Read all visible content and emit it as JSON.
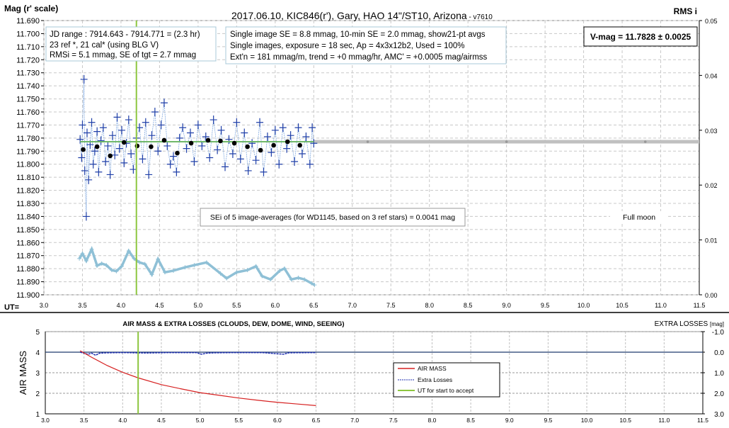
{
  "chart_data": [
    {
      "type": "scatter",
      "title": "2017.06.10,  KIC846(r'), Gary, HAO 14\"/ST10, Arizona",
      "title_suffix": " - v7610",
      "ylabel": "Mag (r' scale)",
      "y2label": "RMS i",
      "xlabel": "UT=",
      "xlim": [
        3.0,
        11.5
      ],
      "xticks": [
        "3.0",
        "3.5",
        "4.0",
        "4.5",
        "5.0",
        "5.5",
        "6.0",
        "6.5",
        "7.0",
        "7.5",
        "8.0",
        "8.5",
        "9.0",
        "9.5",
        "10.0",
        "10.5",
        "11.0",
        "11.5"
      ],
      "ylim": [
        11.69,
        11.9
      ],
      "y_inverted": true,
      "yticks": [
        "11.690",
        "11.700",
        "11.710",
        "11.720",
        "11.730",
        "11.740",
        "11.750",
        "11.760",
        "11.770",
        "11.780",
        "11.790",
        "11.800",
        "11.810",
        "11.820",
        "11.830",
        "11.840",
        "11.850",
        "11.860",
        "11.870",
        "11.880",
        "11.890",
        "11.900"
      ],
      "y2lim": [
        0,
        0.05
      ],
      "y2ticks": [
        "0.00",
        "0.01",
        "0.02",
        "0.03",
        "0.04",
        "0.05"
      ],
      "grid": true,
      "accept_ut": 4.2,
      "mean_mag": 11.7828,
      "colors": {
        "individual": "#1f3fa8",
        "averages": "#000000",
        "rms": "#8fc0d6",
        "mean": "#70b86a",
        "extension": "#c0c0c0",
        "accept": "#8dc63f"
      },
      "annotations": {
        "jd_box": [
          "JD range : 7914.643 - 7914.771 = (2.3 hr)",
          "23 ref *, 21 cal* (using BLG V)",
          "RMSi = 5.1 mmag, SE of tgt = 2.7 mmag"
        ],
        "info_box": [
          "Single image SE = 8.8 mmag, 10-min SE = 2.0 mmag, show21-pt avgs",
          "Single images, exposure = 18 sec, Ap = 4x3x12b2, Used = 100%",
          "Ext'n = 181 mmag/m, trend = +0 mmag/hr, AMC' = +0.0005 mag/airmss"
        ],
        "vmag_box": "V-mag = 11.7828 ± 0.0025",
        "sei_box": "SEi of 5 image-averages (for WD1145, based on 3 ref stars) = 0.0041 mag",
        "moon": "Full moon"
      },
      "series": [
        {
          "key": "individual",
          "marker": "cross",
          "points": [
            [
              3.47,
              11.781
            ],
            [
              3.49,
              11.795
            ],
            [
              3.5,
              11.77
            ],
            [
              3.52,
              11.735
            ],
            [
              3.53,
              11.805
            ],
            [
              3.55,
              11.84
            ],
            [
              3.56,
              11.776
            ],
            [
              3.58,
              11.812
            ],
            [
              3.6,
              11.785
            ],
            [
              3.62,
              11.768
            ],
            [
              3.64,
              11.8
            ],
            [
              3.66,
              11.79
            ],
            [
              3.69,
              11.775
            ],
            [
              3.71,
              11.806
            ],
            [
              3.74,
              11.782
            ],
            [
              3.77,
              11.772
            ],
            [
              3.8,
              11.798
            ],
            [
              3.83,
              11.786
            ],
            [
              3.86,
              11.808
            ],
            [
              3.89,
              11.778
            ],
            [
              3.92,
              11.793
            ],
            [
              3.95,
              11.764
            ],
            [
              3.98,
              11.788
            ],
            [
              4.01,
              11.774
            ],
            [
              4.04,
              11.799
            ],
            [
              4.07,
              11.784
            ],
            [
              4.1,
              11.766
            ],
            [
              4.13,
              11.792
            ],
            [
              4.16,
              11.804
            ],
            [
              4.2,
              11.78
            ],
            [
              4.24,
              11.772
            ],
            [
              4.28,
              11.796
            ],
            [
              4.32,
              11.768
            ],
            [
              4.36,
              11.808
            ],
            [
              4.4,
              11.778
            ],
            [
              4.44,
              11.76
            ],
            [
              4.48,
              11.79
            ],
            [
              4.52,
              11.77
            ],
            [
              4.56,
              11.753
            ],
            [
              4.6,
              11.786
            ],
            [
              4.64,
              11.8
            ],
            [
              4.68,
              11.794
            ],
            [
              4.72,
              11.806
            ],
            [
              4.76,
              11.78
            ],
            [
              4.8,
              11.772
            ],
            [
              4.85,
              11.788
            ],
            [
              4.9,
              11.776
            ],
            [
              4.95,
              11.798
            ],
            [
              5.0,
              11.77
            ],
            [
              5.05,
              11.786
            ],
            [
              5.1,
              11.779
            ],
            [
              5.15,
              11.795
            ],
            [
              5.2,
              11.766
            ],
            [
              5.25,
              11.789
            ],
            [
              5.3,
              11.774
            ],
            [
              5.35,
              11.802
            ],
            [
              5.4,
              11.781
            ],
            [
              5.45,
              11.792
            ],
            [
              5.5,
              11.768
            ],
            [
              5.55,
              11.796
            ],
            [
              5.6,
              11.776
            ],
            [
              5.65,
              11.805
            ],
            [
              5.7,
              11.784
            ],
            [
              5.75,
              11.797
            ],
            [
              5.8,
              11.768
            ],
            [
              5.85,
              11.806
            ],
            [
              5.9,
              11.779
            ],
            [
              5.95,
              11.791
            ],
            [
              6.0,
              11.774
            ],
            [
              6.05,
              11.8
            ],
            [
              6.1,
              11.772
            ],
            [
              6.15,
              11.788
            ],
            [
              6.2,
              11.778
            ],
            [
              6.25,
              11.798
            ],
            [
              6.3,
              11.772
            ],
            [
              6.35,
              11.792
            ],
            [
              6.4,
              11.779
            ],
            [
              6.45,
              11.8
            ],
            [
              6.48,
              11.772
            ],
            [
              6.5,
              11.784
            ]
          ]
        },
        {
          "key": "averages",
          "marker": "dot",
          "points": [
            [
              3.51,
              11.7888
            ],
            [
              3.69,
              11.7866
            ],
            [
              3.86,
              11.7936
            ],
            [
              4.04,
              11.7833
            ],
            [
              4.21,
              11.786
            ],
            [
              4.39,
              11.7866
            ],
            [
              4.56,
              11.7817
            ],
            [
              4.73,
              11.7915
            ],
            [
              4.91,
              11.7839
            ],
            [
              5.13,
              11.7817
            ],
            [
              5.29,
              11.7822
            ],
            [
              5.47,
              11.7839
            ],
            [
              5.64,
              11.7866
            ],
            [
              5.81,
              11.7893
            ],
            [
              5.98,
              11.7855
            ],
            [
              6.16,
              11.7828
            ],
            [
              6.32,
              11.7855
            ]
          ]
        },
        {
          "key": "rms",
          "axis": "y2",
          "marker": "plus-line",
          "points": [
            [
              3.46,
              0.0066
            ],
            [
              3.5,
              0.0075
            ],
            [
              3.55,
              0.0062
            ],
            [
              3.62,
              0.0083
            ],
            [
              3.69,
              0.0053
            ],
            [
              3.75,
              0.0057
            ],
            [
              3.81,
              0.0054
            ],
            [
              3.88,
              0.0045
            ],
            [
              3.94,
              0.0043
            ],
            [
              4.01,
              0.0052
            ],
            [
              4.1,
              0.008
            ],
            [
              4.17,
              0.0066
            ],
            [
              4.24,
              0.0059
            ],
            [
              4.31,
              0.0056
            ],
            [
              4.4,
              0.0037
            ],
            [
              4.48,
              0.0065
            ],
            [
              4.57,
              0.0041
            ],
            [
              4.68,
              0.0044
            ],
            [
              4.83,
              0.005
            ],
            [
              4.95,
              0.0054
            ],
            [
              5.11,
              0.0059
            ],
            [
              5.29,
              0.0039
            ],
            [
              5.37,
              0.003
            ],
            [
              5.5,
              0.0041
            ],
            [
              5.64,
              0.0045
            ],
            [
              5.75,
              0.0052
            ],
            [
              5.83,
              0.0034
            ],
            [
              5.94,
              0.0028
            ],
            [
              6.06,
              0.0044
            ],
            [
              6.12,
              0.0048
            ],
            [
              6.21,
              0.0028
            ],
            [
              6.3,
              0.0031
            ],
            [
              6.38,
              0.0028
            ],
            [
              6.47,
              0.0021
            ],
            [
              6.51,
              0.0018
            ]
          ]
        }
      ]
    },
    {
      "type": "line",
      "title": "AIR MASS & EXTRA LOSSES (CLOUDS, DEW, DOME, WIND, SEEING)",
      "ylabel": "AIR MASS",
      "y2label": "EXTRA LOSSES",
      "y2unit": "[mag]",
      "xlim": [
        3.0,
        11.5
      ],
      "xticks": [
        "3.0",
        "3.5",
        "4.0",
        "4.5",
        "5.0",
        "5.5",
        "6.0",
        "6.5",
        "7.0",
        "7.5",
        "8.0",
        "8.5",
        "9.0",
        "9.5",
        "10.0",
        "10.5",
        "11.0",
        "11.5"
      ],
      "ylim": [
        1,
        5
      ],
      "yticks": [
        "1",
        "2",
        "3",
        "4",
        "5"
      ],
      "y2lim": [
        -1.0,
        3.0
      ],
      "y2_inverted": true,
      "y2ticks": [
        "-1.0",
        "0.0",
        "1.0",
        "2.0",
        "3.0"
      ],
      "grid": true,
      "legend": {
        "position": "center-right",
        "items": [
          "AIR MASS",
          "Extra Losses",
          "UT for start to accept"
        ]
      },
      "colors": {
        "airmass": "#d62020",
        "losses": "#1f2fb0",
        "zero": "#1f3a6e",
        "accept": "#8dc63f"
      },
      "accept_ut": 4.2,
      "series": [
        {
          "name": "AIR MASS",
          "points": [
            [
              3.45,
              4.07
            ],
            [
              3.6,
              3.75
            ],
            [
              3.8,
              3.35
            ],
            [
              4.0,
              3.02
            ],
            [
              4.2,
              2.75
            ],
            [
              4.5,
              2.42
            ],
            [
              4.75,
              2.22
            ],
            [
              5.0,
              2.03
            ],
            [
              5.25,
              1.9
            ],
            [
              5.5,
              1.77
            ],
            [
              5.75,
              1.66
            ],
            [
              6.0,
              1.56
            ],
            [
              6.25,
              1.48
            ],
            [
              6.5,
              1.4
            ]
          ]
        },
        {
          "name": "Extra Losses",
          "points": [
            [
              3.45,
              0.0
            ],
            [
              3.5,
              0.05
            ],
            [
              3.55,
              0.1
            ],
            [
              3.6,
              0.05
            ],
            [
              3.65,
              0.15
            ],
            [
              3.7,
              0.05
            ],
            [
              3.8,
              0.03
            ],
            [
              4.0,
              0.02
            ],
            [
              4.3,
              0.04
            ],
            [
              4.6,
              0.02
            ],
            [
              4.95,
              0.02
            ],
            [
              5.02,
              0.1
            ],
            [
              5.08,
              0.05
            ],
            [
              5.2,
              0.03
            ],
            [
              5.5,
              0.02
            ],
            [
              5.8,
              0.02
            ],
            [
              6.08,
              0.1
            ],
            [
              6.15,
              0.03
            ],
            [
              6.5,
              0.02
            ]
          ]
        }
      ]
    }
  ]
}
